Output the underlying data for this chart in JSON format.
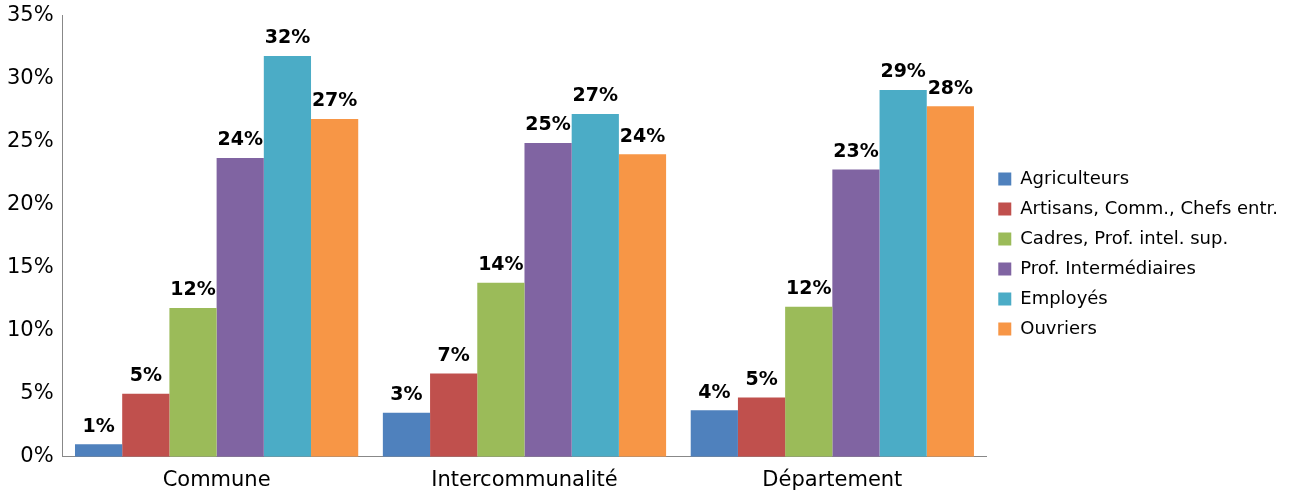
{
  "chart_data": {
    "type": "bar",
    "categories": [
      "Commune",
      "Intercommunalité",
      "Département"
    ],
    "series": [
      {
        "name": "Agriculteurs",
        "color": "#4f81bd",
        "values": [
          1.0,
          3.5,
          3.7
        ],
        "value_labels": [
          "1%",
          "3%",
          "4%"
        ]
      },
      {
        "name": "Artisans, Comm., Chefs entr.",
        "color": "#c0504d",
        "values": [
          5.0,
          6.6,
          4.7
        ],
        "value_labels": [
          "5%",
          "7%",
          "5%"
        ]
      },
      {
        "name": "Cadres, Prof. intel. sup.",
        "color": "#9bbb59",
        "values": [
          11.8,
          13.8,
          11.9
        ],
        "value_labels": [
          "12%",
          "14%",
          "12%"
        ]
      },
      {
        "name": "Prof. Intermédiaires",
        "color": "#8064a2",
        "values": [
          23.7,
          24.9,
          22.8
        ],
        "value_labels": [
          "24%",
          "25%",
          "23%"
        ]
      },
      {
        "name": "Employés",
        "color": "#4bacc6",
        "values": [
          31.8,
          27.2,
          29.1
        ],
        "value_labels": [
          "32%",
          "27%",
          "29%"
        ]
      },
      {
        "name": "Ouvriers",
        "color": "#f79646",
        "values": [
          26.8,
          24.0,
          27.8
        ],
        "value_labels": [
          "27%",
          "24%",
          "28%"
        ]
      }
    ],
    "ylim": [
      0,
      35
    ],
    "yticks": [
      {
        "value": 0,
        "label": "0%"
      },
      {
        "value": 5,
        "label": "5%"
      },
      {
        "value": 10,
        "label": "10%"
      },
      {
        "value": 15,
        "label": "15%"
      },
      {
        "value": 20,
        "label": "20%"
      },
      {
        "value": 25,
        "label": "25%"
      },
      {
        "value": 30,
        "label": "30%"
      },
      {
        "value": 35,
        "label": "35%"
      }
    ],
    "grid": false,
    "legend": "right"
  }
}
